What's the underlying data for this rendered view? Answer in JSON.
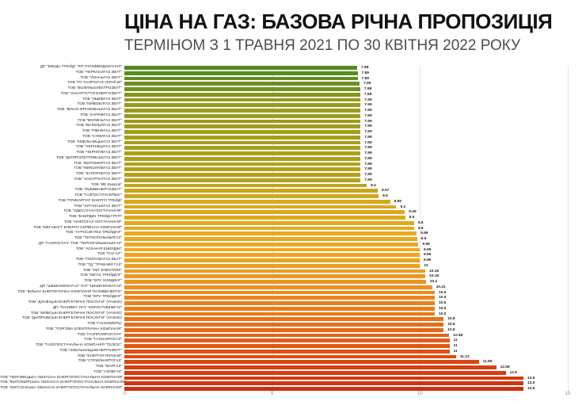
{
  "header": {
    "title": "ЦІНА НА ГАЗ: БАЗОВА РІЧНА ПРОПОЗИЦІЯ",
    "subtitle": "ТЕРМІНОМ З 1 ТРАВНЯ 2021 ПО 30 КВІТНЯ 2022 РОКУ"
  },
  "chart_data": {
    "type": "bar",
    "orientation": "horizontal",
    "title": "ЦІНА НА ГАЗ: БАЗОВА РІЧНА ПРОПОЗИЦІЯ",
    "subtitle": "ТЕРМІНОМ З 1 ТРАВНЯ 2021 ПО 30 КВІТНЯ 2022 РОКУ",
    "xlim": [
      0,
      15
    ],
    "x_ticks": [
      "0",
      "5",
      "10",
      "15"
    ],
    "grid": true,
    "legend": "none",
    "categories": [
      "ДП \"ЕВОДА ТРЕЙД\" \"КП ГЛУХІВВОДОКАНАЛ\"",
      "ТОВ \"ЧЕРКАСИГАЗ ЗБУТ\"",
      "ТОВ \"УМАНЬГАЗ ЗБУТ\"",
      "ТОВ \"ГК \"НАФТОГАЗ УКРАЇНИ\"",
      "ТОВ \"ВОЛИНЬЕЛЕКТРОЗБУТ\"",
      "ТОВ \"ЗАКАРПАТТЯ ЕНЕРГОЗБУТ\"",
      "ТОВ \"ЛЬВІВГАЗ ЗБУТ\"",
      "ТОВ \"КИЇВОБЛГАЗ ЗБУТ\"",
      "ТОВ \"ІВАНО-ФРАНКІВСЬКГАЗ ЗБУТ\"",
      "ТОВ \"ХАРКІВГАЗ ЗБУТ\"",
      "ТОВ \"ВОЛИНЬГАЗ ЗБУТ\"",
      "ТОВ \"ВІННИЦЯГАЗ ЗБУТ\"",
      "ТОВ \"РІВНЕГАЗ ЗБУТ\"",
      "ТОВ \"СУМИГАЗ ЗБУТ\"",
      "ТОВ \"ХМЕЛЬНИЦЬКГАЗ ЗБУТ\"",
      "ТОВ \"ЧЕРНІВЦІГАЗ ЗБУТ\"",
      "ТОВ \"ЧЕРНІГІВГАЗ ЗБУТ\"",
      "ТОВ \"ДНІПРОПЕТРОВСЬКГАЗ ЗБУТ\"",
      "ТОВ \"ЖИТОМИРГАЗ ЗБУТ\"",
      "ТОВ \"МИКОЛАЇВГАЗ ЗБУТ\"",
      "ТОВ \"ЗАПОРІЖГАЗ ЗБУТ\"",
      "ТОВ \"ЗАКАРПАТГАЗ ЗБУТ\"",
      "ТОВ \"ЙЕ Енергія\"",
      "ТОВ \"ЛЬВІВЕНЕРГОЗБУТ\"",
      "ТОВ \"ГАЗПОСТАЧСЕРВІС\"",
      "ТОВ \"ПРИКАРПАТ ЕНЕРГО ТРЕЙД\"",
      "ТОВ \"ЛУГАНСЬКГАЗ ЗБУТ\"",
      "ТОВ \"ОДЕСАГАЗ-ПОСТАЧАННЯ\"",
      "ТОВ \"ЕНЕРДЖІ ТРЕЙД ГРУП\"",
      "ТОВ \"НАФТОГАЗ ПОСТАЧАННЯ\"",
      "ТОВ \"МЕГАВАТТ ЕНЕРГО СЕРВІСНА КОМПАНІЯ\"",
      "ТОВ \"АГРОСИНТЕЗ ТРЕЙДІНГ\"",
      "ТОВ \"ТЕРНОПІЛЬОБЛГАЗ\"",
      "ДП \"ГАЗПОСТАЧ\" ТОВ \"ТЕРНОПІЛЬМІСЬКГАЗ\"",
      "ТОВ \"АСКАНІЯ ЕНЕРДЖІ\"",
      "ТОВ \"ГАЗ АІГ\"",
      "ТОВ \"ПОЛТАВАГАЗ ЗБУТ\"",
      "ТОВ \"ТД \"ТРУБНИЙ ГАЗ\"",
      "ТОВ \"ЛКТ ЕЛЕКТРИК\"",
      "ТОВ \"МІГАЗ ТРЕЙДІНГ\"",
      "ТОВ \"ЕРУ ХОЛДИНГ\"",
      "ДП \"ШЕБЕЛИНКАГАЗ\" ПАТ \"ШЕБЕЛИНКАГАЗ\"",
      "ТОВ \"ВІЛЬНА ЕНЕРГЕТИЧНА КОМПАНІЯ ПАЛИВЕНЕРГО\"",
      "ТОВ \"ЕРУ ТРЕЙДІНГ\"",
      "ТОВ \"ДОНЕЦЬКІ ЕНЕРГЕТИЧНІ ПОСЛУГИ\" (YASNO)",
      "ДП \"ПАЛИВО\" ПАТ \"КОРОСТИШІВГАЗ\"",
      "ТОВ \"КИЇВСЬКІ ЕНЕРГЕТИЧНІ ПОСЛУГИ\" (YASNO)",
      "ТОВ \"ДНІПРОВСЬКІ ЕНЕРГЕТИЧНІ ПОСЛУГИ\" (YASNO)",
      "ТОВ \"ГАСКОМЕРЦ\"",
      "ТОВ \"ТОРГОВА ЕЛЕКТРИЧНА КОМПАНІЯ\"",
      "ТОВ \"ГАЗПРОМПОСТАЧ\"",
      "ТОВ \"ГАЛНАФТОГАЗ\"",
      "ТОВ \"ГАЗОПОСТАЧАЛЬНА КОМПАНІЯ \"ГЕЛІОС\"",
      "ТОВ \"ХМЕЛЬНИЦЬКЕНЕРГОЗБУТ\"",
      "ТОВ \"ЕНЕРГІЯ УКРАЇНИ\"",
      "ТОВ \"СТРИЙНАФТОГАЗ\"",
      "ТОВ \"МАРГАЗ\"",
      "ТОВ \"АЗОВГАЗ\"",
      "ТОВ \"ЧЕРНІВЕЦЬКА ОБЛАСНА ЕНЕРГОПОСТАЧАЛЬНА КОМПАНІЯ\"",
      "ТОВ \"ЖИТОМИРСЬКА ОБЛАСНА ЕНЕРГОПОСТАЧАЛЬНА КОМПАНІЯ\"",
      "ТОВ \"ХЕРСОНСЬКА ОБЛАСНА ЕНЕРГОПОСТАЧАЛЬНА КОМПАНІЯ\""
    ],
    "values": [
      7.88,
      7.89,
      7.89,
      7.96,
      7.98,
      7.98,
      7.99,
      7.99,
      7.99,
      7.99,
      7.99,
      7.99,
      7.99,
      7.99,
      7.99,
      7.99,
      7.99,
      7.99,
      7.99,
      7.99,
      7.99,
      7.99,
      8.2,
      8.57,
      8.6,
      8.99,
      9.2,
      9.49,
      9.5,
      9.8,
      9.8,
      9.89,
      9.9,
      9.95,
      9.99,
      9.99,
      9.99,
      10,
      10.18,
      10.18,
      10.2,
      10.41,
      10.5,
      10.5,
      10.5,
      10.5,
      10.5,
      10.8,
      10.8,
      10.8,
      10.99,
      11,
      11,
      11,
      11.22,
      11.99,
      12.58,
      12.9,
      13.5,
      13.5,
      13.5
    ],
    "color_stops": [
      {
        "index": 0,
        "color": "#4e8c1e"
      },
      {
        "index": 4,
        "color": "#759121"
      },
      {
        "index": 6,
        "color": "#97991d"
      },
      {
        "index": 21,
        "color": "#b7a21b"
      },
      {
        "index": 25,
        "color": "#d9a81d"
      },
      {
        "index": 34,
        "color": "#efa81f"
      },
      {
        "index": 41,
        "color": "#ee8f1d"
      },
      {
        "index": 47,
        "color": "#e9731a"
      },
      {
        "index": 52,
        "color": "#e15614"
      },
      {
        "index": 56,
        "color": "#d84110"
      },
      {
        "index": 60,
        "color": "#cc300d"
      }
    ],
    "gridline_color": "#e3e3e3",
    "label_color": "#2a2a2a",
    "value_label_color": "#1c1c1c",
    "tick_color": "#8a8a8a"
  }
}
